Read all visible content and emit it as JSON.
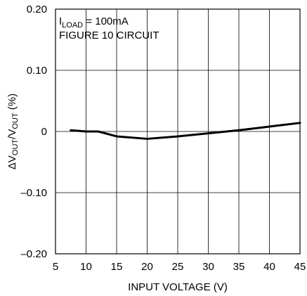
{
  "chart_data": {
    "type": "line",
    "xlabel": "INPUT VOLTAGE (V)",
    "ylabel": {
      "prefix": "ΔV",
      "sub1": "OUT",
      "mid": "/V",
      "sub2": "OUT",
      "suffix": " (%)"
    },
    "xlim": [
      5,
      45
    ],
    "ylim": [
      -0.2,
      0.2
    ],
    "xticks": [
      5,
      10,
      15,
      20,
      25,
      30,
      35,
      40,
      45
    ],
    "xtick_labels": [
      "5",
      "10",
      "15",
      "20",
      "25",
      "30",
      "35",
      "40",
      "45"
    ],
    "yticks": [
      -0.2,
      -0.1,
      0,
      0.1,
      0.2
    ],
    "ytick_labels": [
      "–0.20",
      "–0.10",
      "0",
      "0.10",
      "0.20"
    ],
    "grid": true,
    "annotation": {
      "line1_prefix": "I",
      "line1_sub": "LOAD",
      "line1_suffix": " = 100mA",
      "line2": "FIGURE 10 CIRCUIT"
    },
    "series": [
      {
        "x": [
          7.5,
          10,
          12,
          15,
          20,
          25,
          30,
          35,
          40,
          45
        ],
        "y": [
          0.002,
          0.0,
          0.0,
          -0.008,
          -0.012,
          -0.008,
          -0.003,
          0.002,
          0.008,
          0.014
        ]
      }
    ]
  }
}
